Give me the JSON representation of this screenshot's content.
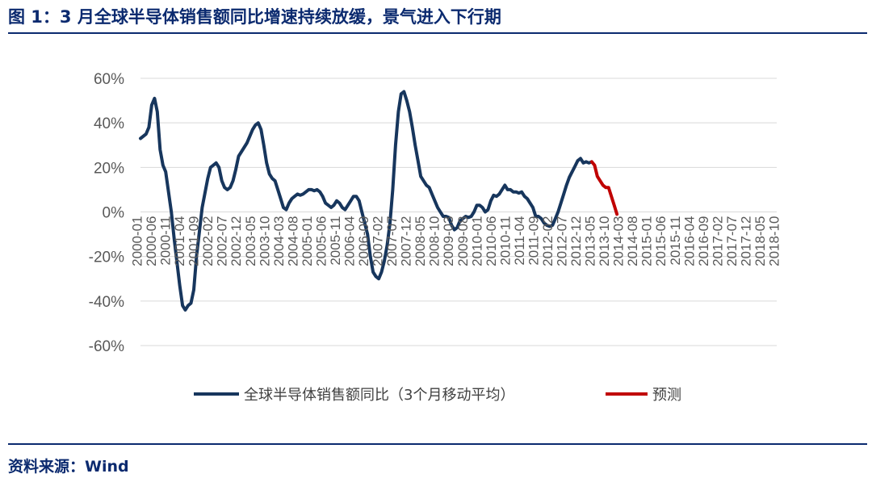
{
  "header": {
    "title": "图 1：3 月全球半导体销售额同比增速持续放缓，景气进入下行期"
  },
  "footer": {
    "source": "资料来源：Wind"
  },
  "colors": {
    "accent": "#0b2a6f",
    "actual_series": "#17365d",
    "forecast_series": "#c00000",
    "grid": "#d9d9d9",
    "tick_text": "#595959"
  },
  "chart_data": {
    "type": "line",
    "title": "",
    "xlabel": "",
    "ylabel": "",
    "ylim": [
      -0.6,
      0.6
    ],
    "y_ticks": [
      0.6,
      0.4,
      0.2,
      0,
      -0.2,
      -0.4,
      -0.6
    ],
    "y_tick_labels": [
      "60%",
      "40%",
      "20%",
      "0%",
      "-20%",
      "-40%",
      "-60%"
    ],
    "x_tick_labels": [
      "2000-01",
      "2000-06",
      "2000-11",
      "2001-04",
      "2001-09",
      "2002-02",
      "2002-07",
      "2002-12",
      "2003-05",
      "2003-10",
      "2004-03",
      "2004-08",
      "2005-01",
      "2005-06",
      "2005-11",
      "2006-04",
      "2006-09",
      "2007-02",
      "2007-07",
      "2007-12",
      "2008-05",
      "2008-10",
      "2009-03",
      "2009-08",
      "2010-01",
      "2010-06",
      "2010-11",
      "2011-04",
      "2011-09",
      "2012-02",
      "2012-07",
      "2012-12",
      "2013-05",
      "2013-10",
      "2014-03",
      "2014-08",
      "2015-01",
      "2015-06",
      "2015-11",
      "2016-04",
      "2016-09",
      "2017-02",
      "2017-07",
      "2017-12",
      "2018-05",
      "2018-10"
    ],
    "x_range": [
      "2000-01",
      "2018-12"
    ],
    "grid": true,
    "legend_position": "bottom",
    "series": [
      {
        "name": "全球半导体销售额同比（3个月移动平均）",
        "points": [
          [
            "2000-01",
            0.33
          ],
          [
            "2000-03",
            0.35
          ],
          [
            "2000-04",
            0.38
          ],
          [
            "2000-05",
            0.48
          ],
          [
            "2000-06",
            0.51
          ],
          [
            "2000-07",
            0.45
          ],
          [
            "2000-08",
            0.28
          ],
          [
            "2000-09",
            0.21
          ],
          [
            "2000-10",
            0.18
          ],
          [
            "2000-12",
            0.0
          ],
          [
            "2001-01",
            -0.12
          ],
          [
            "2001-03",
            -0.33
          ],
          [
            "2001-04",
            -0.42
          ],
          [
            "2001-05",
            -0.44
          ],
          [
            "2001-06",
            -0.42
          ],
          [
            "2001-07",
            -0.41
          ],
          [
            "2001-08",
            -0.35
          ],
          [
            "2001-09",
            -0.2
          ],
          [
            "2001-11",
            0.02
          ],
          [
            "2002-01",
            0.15
          ],
          [
            "2002-02",
            0.2
          ],
          [
            "2002-03",
            0.21
          ],
          [
            "2002-04",
            0.22
          ],
          [
            "2002-05",
            0.2
          ],
          [
            "2002-06",
            0.14
          ],
          [
            "2002-07",
            0.11
          ],
          [
            "2002-08",
            0.1
          ],
          [
            "2002-09",
            0.11
          ],
          [
            "2002-10",
            0.14
          ],
          [
            "2002-11",
            0.19
          ],
          [
            "2002-12",
            0.25
          ],
          [
            "2003-01",
            0.27
          ],
          [
            "2003-03",
            0.31
          ],
          [
            "2003-04",
            0.34
          ],
          [
            "2003-05",
            0.37
          ],
          [
            "2003-06",
            0.39
          ],
          [
            "2003-07",
            0.4
          ],
          [
            "2003-08",
            0.37
          ],
          [
            "2003-09",
            0.3
          ],
          [
            "2003-10",
            0.22
          ],
          [
            "2003-11",
            0.17
          ],
          [
            "2003-12",
            0.15
          ],
          [
            "2004-01",
            0.14
          ],
          [
            "2004-02",
            0.1
          ],
          [
            "2004-03",
            0.06
          ],
          [
            "2004-04",
            0.02
          ],
          [
            "2004-05",
            0.01
          ],
          [
            "2004-06",
            0.04
          ],
          [
            "2004-07",
            0.06
          ],
          [
            "2004-08",
            0.07
          ],
          [
            "2004-09",
            0.08
          ],
          [
            "2004-10",
            0.075
          ],
          [
            "2004-11",
            0.08
          ],
          [
            "2004-12",
            0.09
          ],
          [
            "2005-01",
            0.1
          ],
          [
            "2005-02",
            0.1
          ],
          [
            "2005-03",
            0.095
          ],
          [
            "2005-04",
            0.1
          ],
          [
            "2005-05",
            0.09
          ],
          [
            "2005-06",
            0.07
          ],
          [
            "2005-07",
            0.04
          ],
          [
            "2005-08",
            0.03
          ],
          [
            "2005-09",
            0.02
          ],
          [
            "2005-10",
            0.03
          ],
          [
            "2005-11",
            0.05
          ],
          [
            "2005-12",
            0.04
          ],
          [
            "2006-01",
            0.02
          ],
          [
            "2006-02",
            0.01
          ],
          [
            "2006-03",
            0.03
          ],
          [
            "2006-04",
            0.05
          ],
          [
            "2006-05",
            0.07
          ],
          [
            "2006-06",
            0.07
          ],
          [
            "2006-07",
            0.05
          ],
          [
            "2006-08",
            0.0
          ],
          [
            "2006-09",
            -0.05
          ],
          [
            "2006-10",
            -0.1
          ],
          [
            "2006-11",
            -0.2
          ],
          [
            "2006-12",
            -0.27
          ],
          [
            "2007-01",
            -0.29
          ],
          [
            "2007-02",
            -0.3
          ],
          [
            "2007-03",
            -0.27
          ],
          [
            "2007-04",
            -0.22
          ],
          [
            "2007-05",
            -0.15
          ],
          [
            "2007-06",
            -0.05
          ],
          [
            "2007-07",
            0.1
          ],
          [
            "2007-08",
            0.3
          ],
          [
            "2007-09",
            0.45
          ],
          [
            "2007-10",
            0.53
          ],
          [
            "2007-11",
            0.54
          ],
          [
            "2007-12",
            0.5
          ],
          [
            "2008-01",
            0.45
          ],
          [
            "2008-02",
            0.38
          ],
          [
            "2008-03",
            0.3
          ],
          [
            "2008-04",
            0.23
          ],
          [
            "2008-05",
            0.16
          ],
          [
            "2008-06",
            0.14
          ],
          [
            "2008-07",
            0.12
          ],
          [
            "2008-08",
            0.11
          ],
          [
            "2008-09",
            0.08
          ],
          [
            "2008-10",
            0.05
          ],
          [
            "2008-11",
            0.02
          ],
          [
            "2008-12",
            0.0
          ],
          [
            "2009-01",
            -0.02
          ],
          [
            "2009-02",
            -0.02
          ],
          [
            "2009-03",
            -0.025
          ],
          [
            "2009-04",
            -0.06
          ],
          [
            "2009-05",
            -0.08
          ],
          [
            "2009-06",
            -0.07
          ],
          [
            "2009-07",
            -0.04
          ],
          [
            "2009-08",
            -0.03
          ],
          [
            "2009-09",
            -0.02
          ],
          [
            "2009-10",
            -0.025
          ],
          [
            "2009-11",
            -0.02
          ],
          [
            "2009-12",
            0.0
          ],
          [
            "2010-01",
            0.03
          ],
          [
            "2010-02",
            0.03
          ],
          [
            "2010-03",
            0.02
          ],
          [
            "2010-04",
            0.0
          ],
          [
            "2010-05",
            0.01
          ],
          [
            "2010-06",
            0.05
          ],
          [
            "2010-07",
            0.075
          ],
          [
            "2010-08",
            0.07
          ],
          [
            "2010-09",
            0.08
          ],
          [
            "2010-10",
            0.1
          ],
          [
            "2010-11",
            0.12
          ],
          [
            "2010-12",
            0.1
          ],
          [
            "2011-01",
            0.1
          ],
          [
            "2011-02",
            0.09
          ],
          [
            "2011-03",
            0.09
          ],
          [
            "2011-04",
            0.085
          ],
          [
            "2011-05",
            0.09
          ],
          [
            "2011-06",
            0.07
          ],
          [
            "2011-07",
            0.06
          ],
          [
            "2011-08",
            0.04
          ],
          [
            "2011-09",
            0.02
          ],
          [
            "2011-10",
            -0.02
          ],
          [
            "2011-11",
            -0.02
          ],
          [
            "2011-12",
            -0.03
          ],
          [
            "2012-01",
            -0.05
          ],
          [
            "2012-02",
            -0.06
          ],
          [
            "2012-03",
            -0.065
          ],
          [
            "2012-04",
            -0.06
          ],
          [
            "2012-05",
            -0.03
          ],
          [
            "2012-06",
            0.0
          ],
          [
            "2012-07",
            0.04
          ],
          [
            "2012-08",
            0.08
          ],
          [
            "2012-09",
            0.12
          ],
          [
            "2012-10",
            0.155
          ],
          [
            "2012-11",
            0.18
          ],
          [
            "2012-12",
            0.205
          ],
          [
            "2013-01",
            0.23
          ],
          [
            "2013-02",
            0.24
          ],
          [
            "2013-03",
            0.22
          ],
          [
            "2013-04",
            0.225
          ],
          [
            "2013-05",
            0.22
          ],
          [
            "2013-06",
            0.225
          ]
        ]
      },
      {
        "name": "预测",
        "points": [
          [
            "2013-06",
            0.225
          ],
          [
            "2013-07",
            0.21
          ],
          [
            "2013-08",
            0.16
          ],
          [
            "2013-09",
            0.14
          ],
          [
            "2013-10",
            0.12
          ],
          [
            "2013-11",
            0.11
          ],
          [
            "2013-12",
            0.11
          ],
          [
            "2014-01",
            0.07
          ],
          [
            "2014-02",
            0.03
          ],
          [
            "2014-03",
            -0.01
          ]
        ]
      }
    ]
  }
}
